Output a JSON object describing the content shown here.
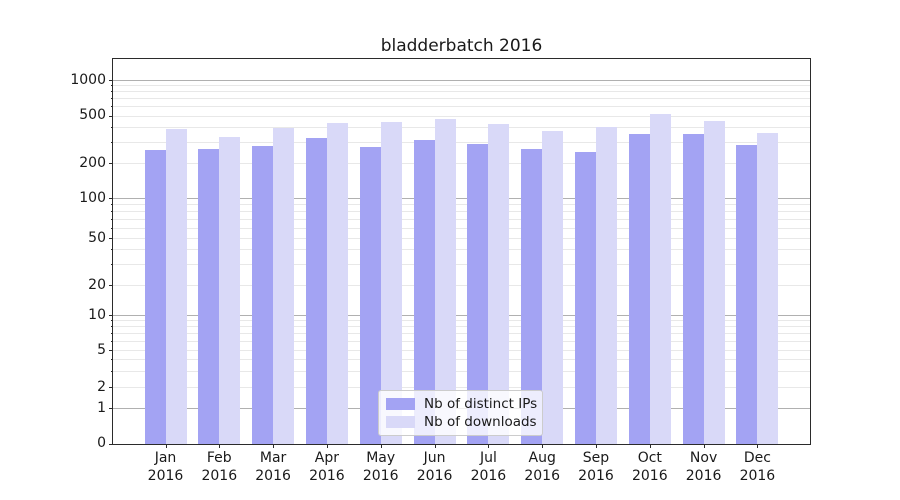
{
  "title": "bladderbatch 2016",
  "chart_data": {
    "type": "bar",
    "title": "bladderbatch 2016",
    "yscale": "symlog",
    "grid": true,
    "legend_position": "lower center",
    "ylim": [
      0,
      1500
    ],
    "y_ticks": [
      1000,
      500,
      200,
      100,
      50,
      20,
      10,
      5,
      2,
      1,
      0
    ],
    "categories": [
      "Jan 2016",
      "Feb 2016",
      "Mar 2016",
      "Apr 2016",
      "May 2016",
      "Jun 2016",
      "Jul 2016",
      "Aug 2016",
      "Sep 2016",
      "Oct 2016",
      "Nov 2016",
      "Dec 2016"
    ],
    "series": [
      {
        "name": "Nb of distinct IPs",
        "color": "#a3a3f3",
        "values": [
          259,
          262,
          276,
          324,
          272,
          314,
          288,
          263,
          247,
          353,
          347,
          281
        ]
      },
      {
        "name": "Nb of downloads",
        "color": "#d9d9f8",
        "values": [
          389,
          331,
          390,
          436,
          443,
          464,
          421,
          372,
          402,
          515,
          452,
          357
        ]
      }
    ]
  },
  "colors": {
    "major_grid": "#b0b0b0",
    "minor_grid": "#e8e8e8",
    "spine": "#2b2b2b"
  }
}
